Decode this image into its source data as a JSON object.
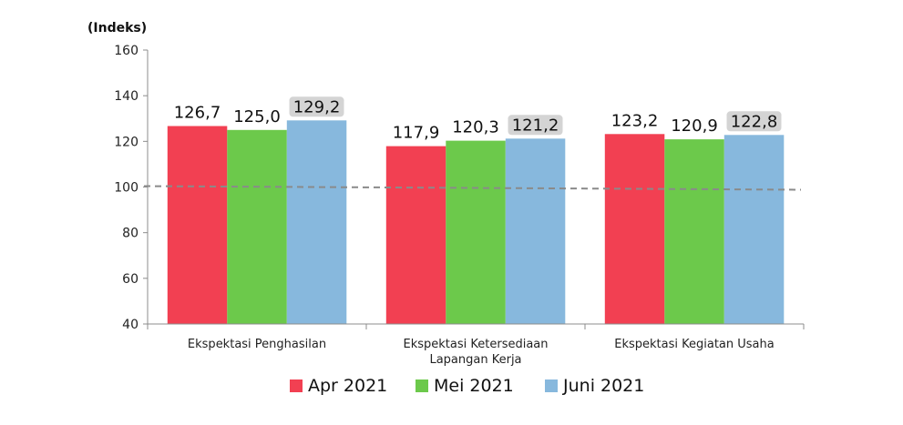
{
  "chart_data": {
    "type": "bar",
    "title": "",
    "ylabel": "(Indeks)",
    "xlabel": "",
    "ylim": [
      40,
      160
    ],
    "yticks": [
      "40",
      "60",
      "80",
      "100",
      "120",
      "140",
      "160"
    ],
    "categories": [
      [
        "Ekspektasi Penghasilan"
      ],
      [
        "Ekspektasi Ketersediaan",
        "Lapangan Kerja"
      ],
      [
        "Ekspektasi Kegiatan Usaha"
      ]
    ],
    "series": [
      {
        "name": "Apr 2021",
        "color": "#f24052",
        "values": [
          126.7,
          117.9,
          123.2
        ],
        "labels": [
          "126,7",
          "117,9",
          "123,2"
        ],
        "highlight": false
      },
      {
        "name": "Mei 2021",
        "color": "#6cc94b",
        "values": [
          125.0,
          120.3,
          120.9
        ],
        "labels": [
          "125,0",
          "120,3",
          "120,9"
        ],
        "highlight": false
      },
      {
        "name": "Juni 2021",
        "color": "#87b8dd",
        "values": [
          129.2,
          121.2,
          122.8
        ],
        "labels": [
          "129,2",
          "121,2",
          "122,8"
        ],
        "highlight": true
      }
    ],
    "reference_line": {
      "value": 100,
      "style": "dashed",
      "color": "#8a8a8a"
    },
    "grid": false,
    "legend_position": "bottom"
  }
}
